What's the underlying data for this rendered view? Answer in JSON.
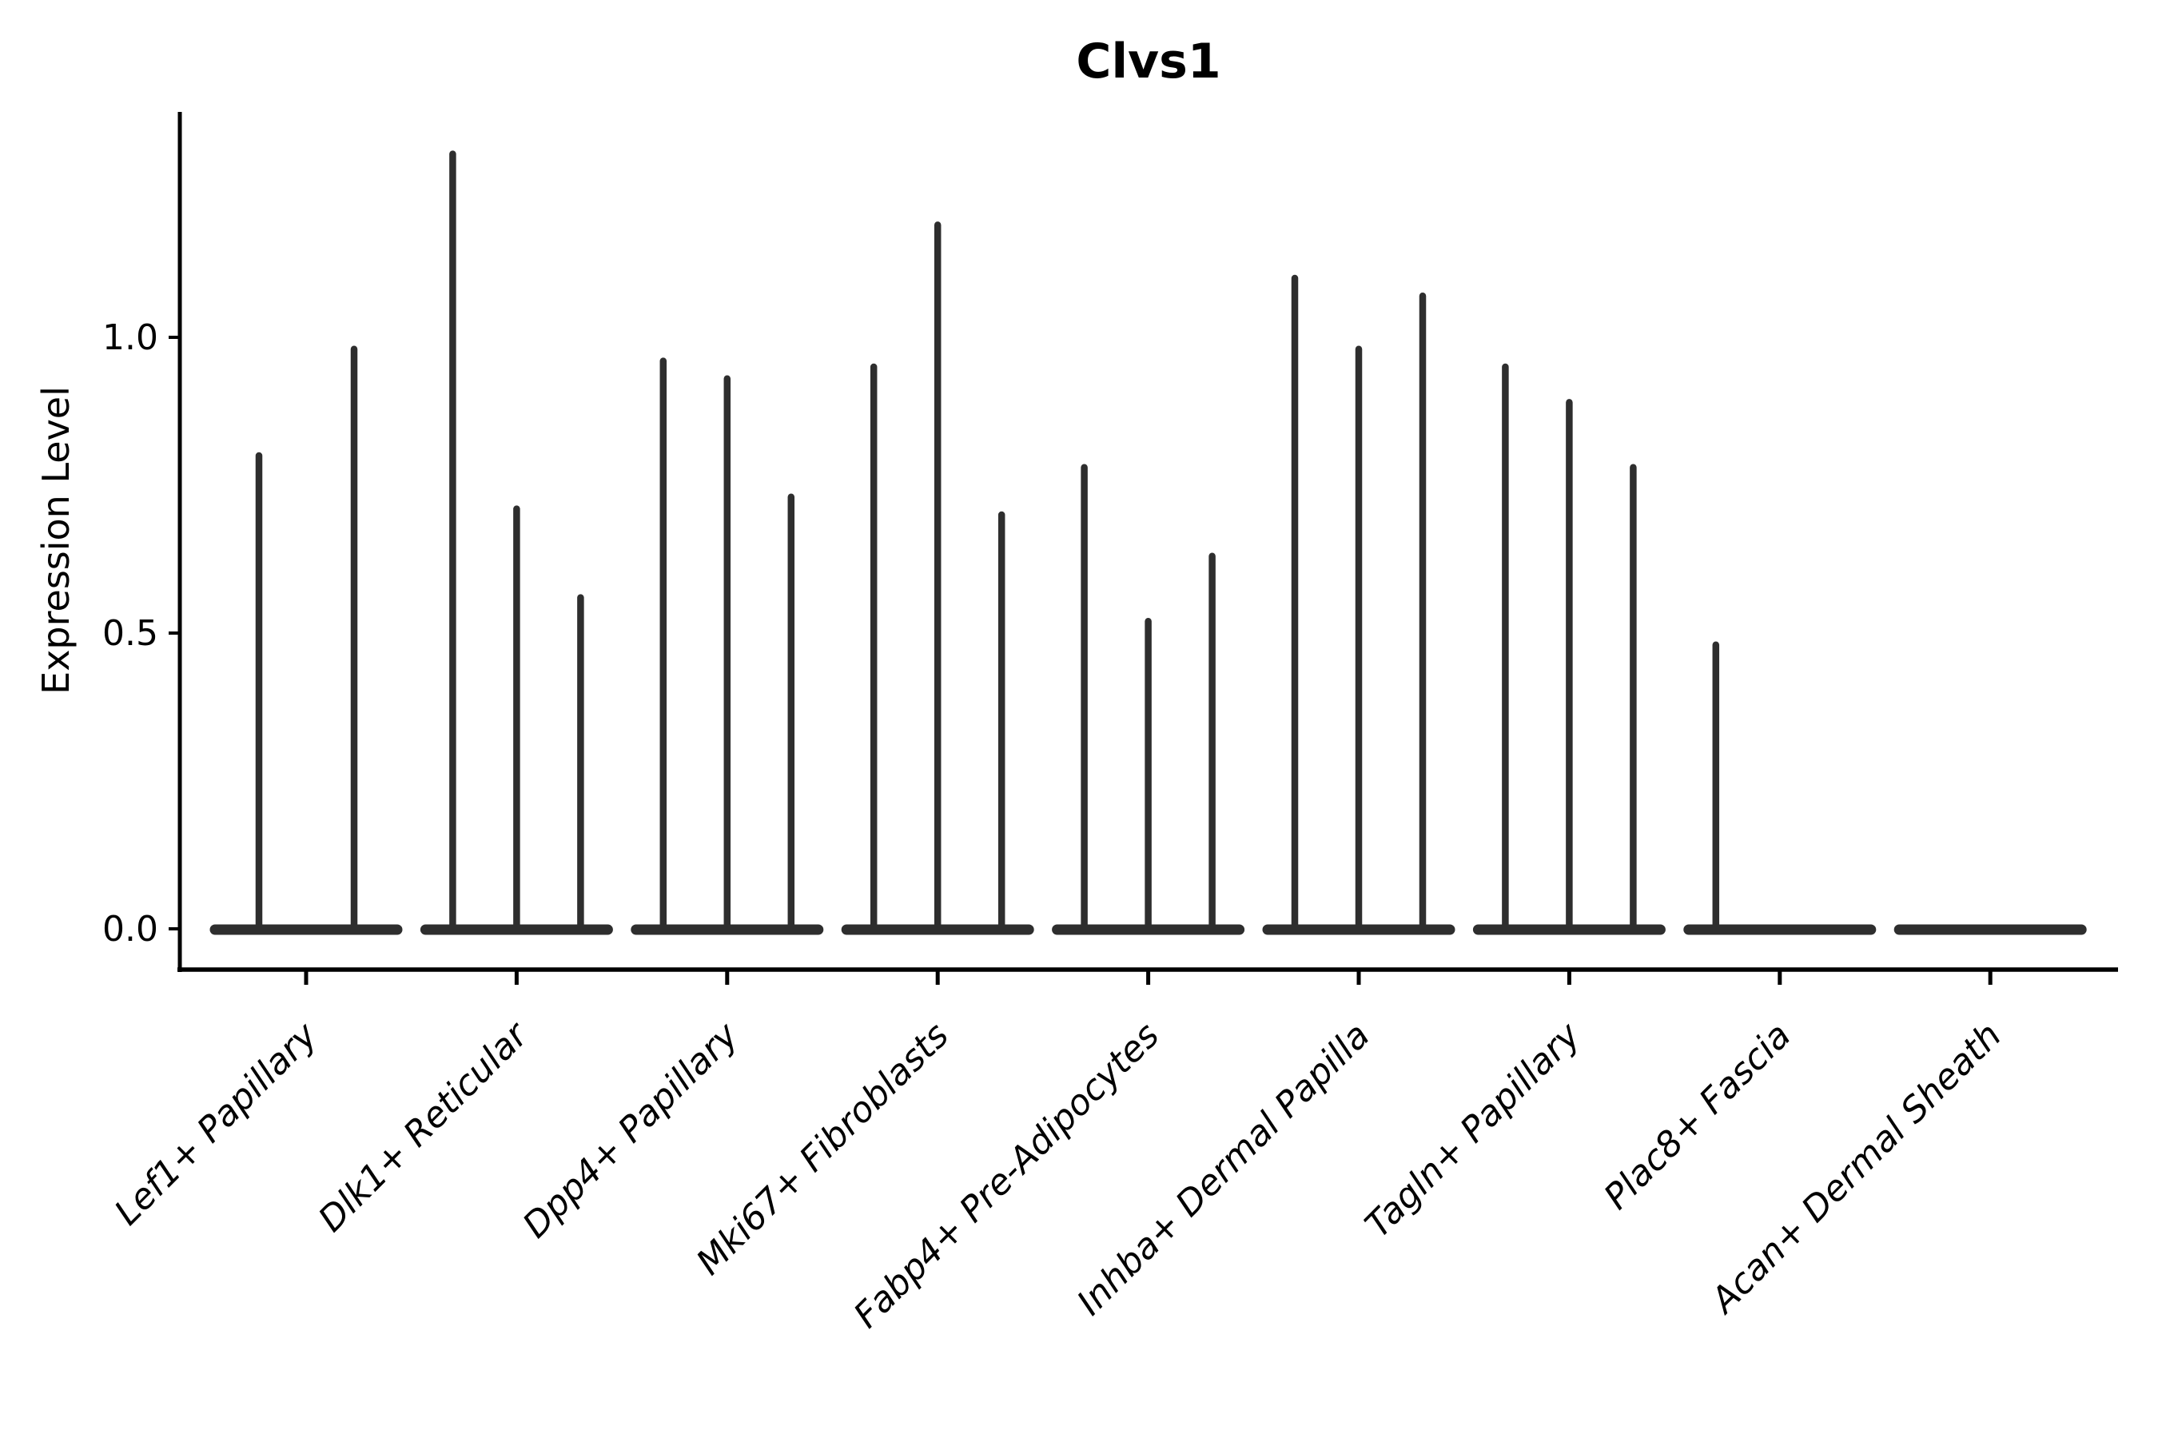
{
  "chart_data": {
    "type": "violin",
    "title": "Clvs1",
    "ylabel": "Expression Level",
    "xlabel": "",
    "yticks": [
      "0.0",
      "0.5",
      "1.0"
    ],
    "ytick_values": [
      0.0,
      0.5,
      1.0
    ],
    "ylim": [
      0,
      1.38
    ],
    "grid": false,
    "legend": "none",
    "x_labels_rotation_deg": 45,
    "x_labels_italic": true,
    "violin_color": "#2e2e2e",
    "axis_color": "#000000",
    "categories": [
      "Lef1+ Papillary",
      "Dlk1+ Reticular",
      "Dpp4+ Papillary",
      "Mki67+ Fibroblasts",
      "Fabp4+ Pre-Adipocytes",
      "Inhba+ Dermal Papilla",
      "Tagln+ Papillary",
      "Plac8+ Fascia",
      "Acan+ Dermal Sheath"
    ],
    "groups": [
      {
        "category": "Lef1+ Papillary",
        "violins": [
          {
            "offset": -59,
            "max": 0.8
          },
          {
            "offset": 60,
            "max": 0.98
          }
        ]
      },
      {
        "category": "Dlk1+ Reticular",
        "violins": [
          {
            "offset": -80,
            "max": 1.31
          },
          {
            "offset": 0,
            "max": 0.71
          },
          {
            "offset": 80,
            "max": 0.56
          }
        ]
      },
      {
        "category": "Dpp4+ Papillary",
        "violins": [
          {
            "offset": -80,
            "max": 0.96
          },
          {
            "offset": 0,
            "max": 0.93
          },
          {
            "offset": 80,
            "max": 0.73
          }
        ]
      },
      {
        "category": "Mki67+ Fibroblasts",
        "violins": [
          {
            "offset": -80,
            "max": 0.95
          },
          {
            "offset": 0,
            "max": 1.19
          },
          {
            "offset": 80,
            "max": 0.7
          }
        ]
      },
      {
        "category": "Fabp4+ Pre-Adipocytes",
        "violins": [
          {
            "offset": -80,
            "max": 0.78
          },
          {
            "offset": 0,
            "max": 0.52
          },
          {
            "offset": 80,
            "max": 0.63
          }
        ]
      },
      {
        "category": "Inhba+ Dermal Papilla",
        "violins": [
          {
            "offset": -80,
            "max": 1.1
          },
          {
            "offset": 0,
            "max": 0.98
          },
          {
            "offset": 80,
            "max": 1.07
          }
        ]
      },
      {
        "category": "Tagln+ Papillary",
        "violins": [
          {
            "offset": -80,
            "max": 0.95
          },
          {
            "offset": 0,
            "max": 0.89
          },
          {
            "offset": 80,
            "max": 0.78
          }
        ]
      },
      {
        "category": "Plac8+ Fascia",
        "violins": [
          {
            "offset": -80,
            "max": 0.48
          },
          {
            "offset": 0,
            "max": 0.0
          },
          {
            "offset": 80,
            "max": 0.0
          }
        ]
      },
      {
        "category": "Acan+ Dermal Sheath",
        "violins": [
          {
            "offset": -80,
            "max": 0.0
          },
          {
            "offset": 0,
            "max": 0.0
          },
          {
            "offset": 80,
            "max": 0.0
          }
        ]
      }
    ]
  }
}
